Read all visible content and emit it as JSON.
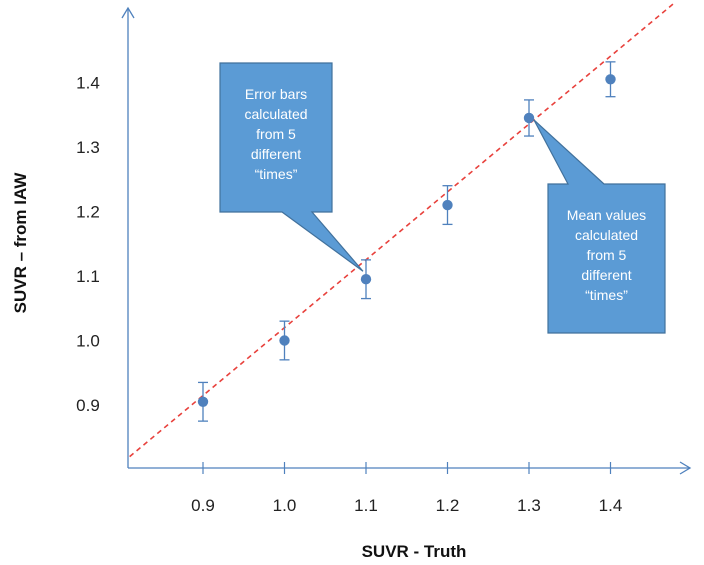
{
  "chart_data": {
    "type": "scatter",
    "xlabel": "SUVR - Truth",
    "ylabel": "SUVR – from IAW",
    "x_ticks": [
      "0.9",
      "1.0",
      "1.1",
      "1.2",
      "1.3",
      "1.4"
    ],
    "y_ticks": [
      "0.9",
      "1.0",
      "1.1",
      "1.2",
      "1.3",
      "1.4"
    ],
    "xlim": [
      0.81,
      1.495
    ],
    "ylim": [
      0.81,
      1.565
    ],
    "series": [
      {
        "x": [
          0.9,
          1.0,
          1.1,
          1.2,
          1.3,
          1.4
        ],
        "y": [
          0.905,
          1.0,
          1.095,
          1.21,
          1.345,
          1.405
        ],
        "error": [
          0.03,
          0.03,
          0.03,
          0.03,
          0.028,
          0.027
        ],
        "color": "#4f81bd"
      }
    ],
    "reference_line": {
      "type": "identity",
      "x": [
        0.81,
        1.48
      ],
      "y": [
        0.82,
        1.525
      ],
      "color": "#e8413c",
      "style": "dashed"
    },
    "grid": false,
    "annotations": [
      {
        "id": "error",
        "lines": [
          "Error bars",
          "calculated",
          "from 5",
          "different",
          "“times”"
        ],
        "points_to": [
          1.1,
          1.095
        ]
      },
      {
        "id": "mean",
        "lines": [
          "Mean values",
          "calculated",
          "from 5",
          "different",
          "“times”"
        ],
        "points_to": [
          1.3,
          1.345
        ]
      }
    ],
    "callout_color": "#5b9bd5"
  }
}
